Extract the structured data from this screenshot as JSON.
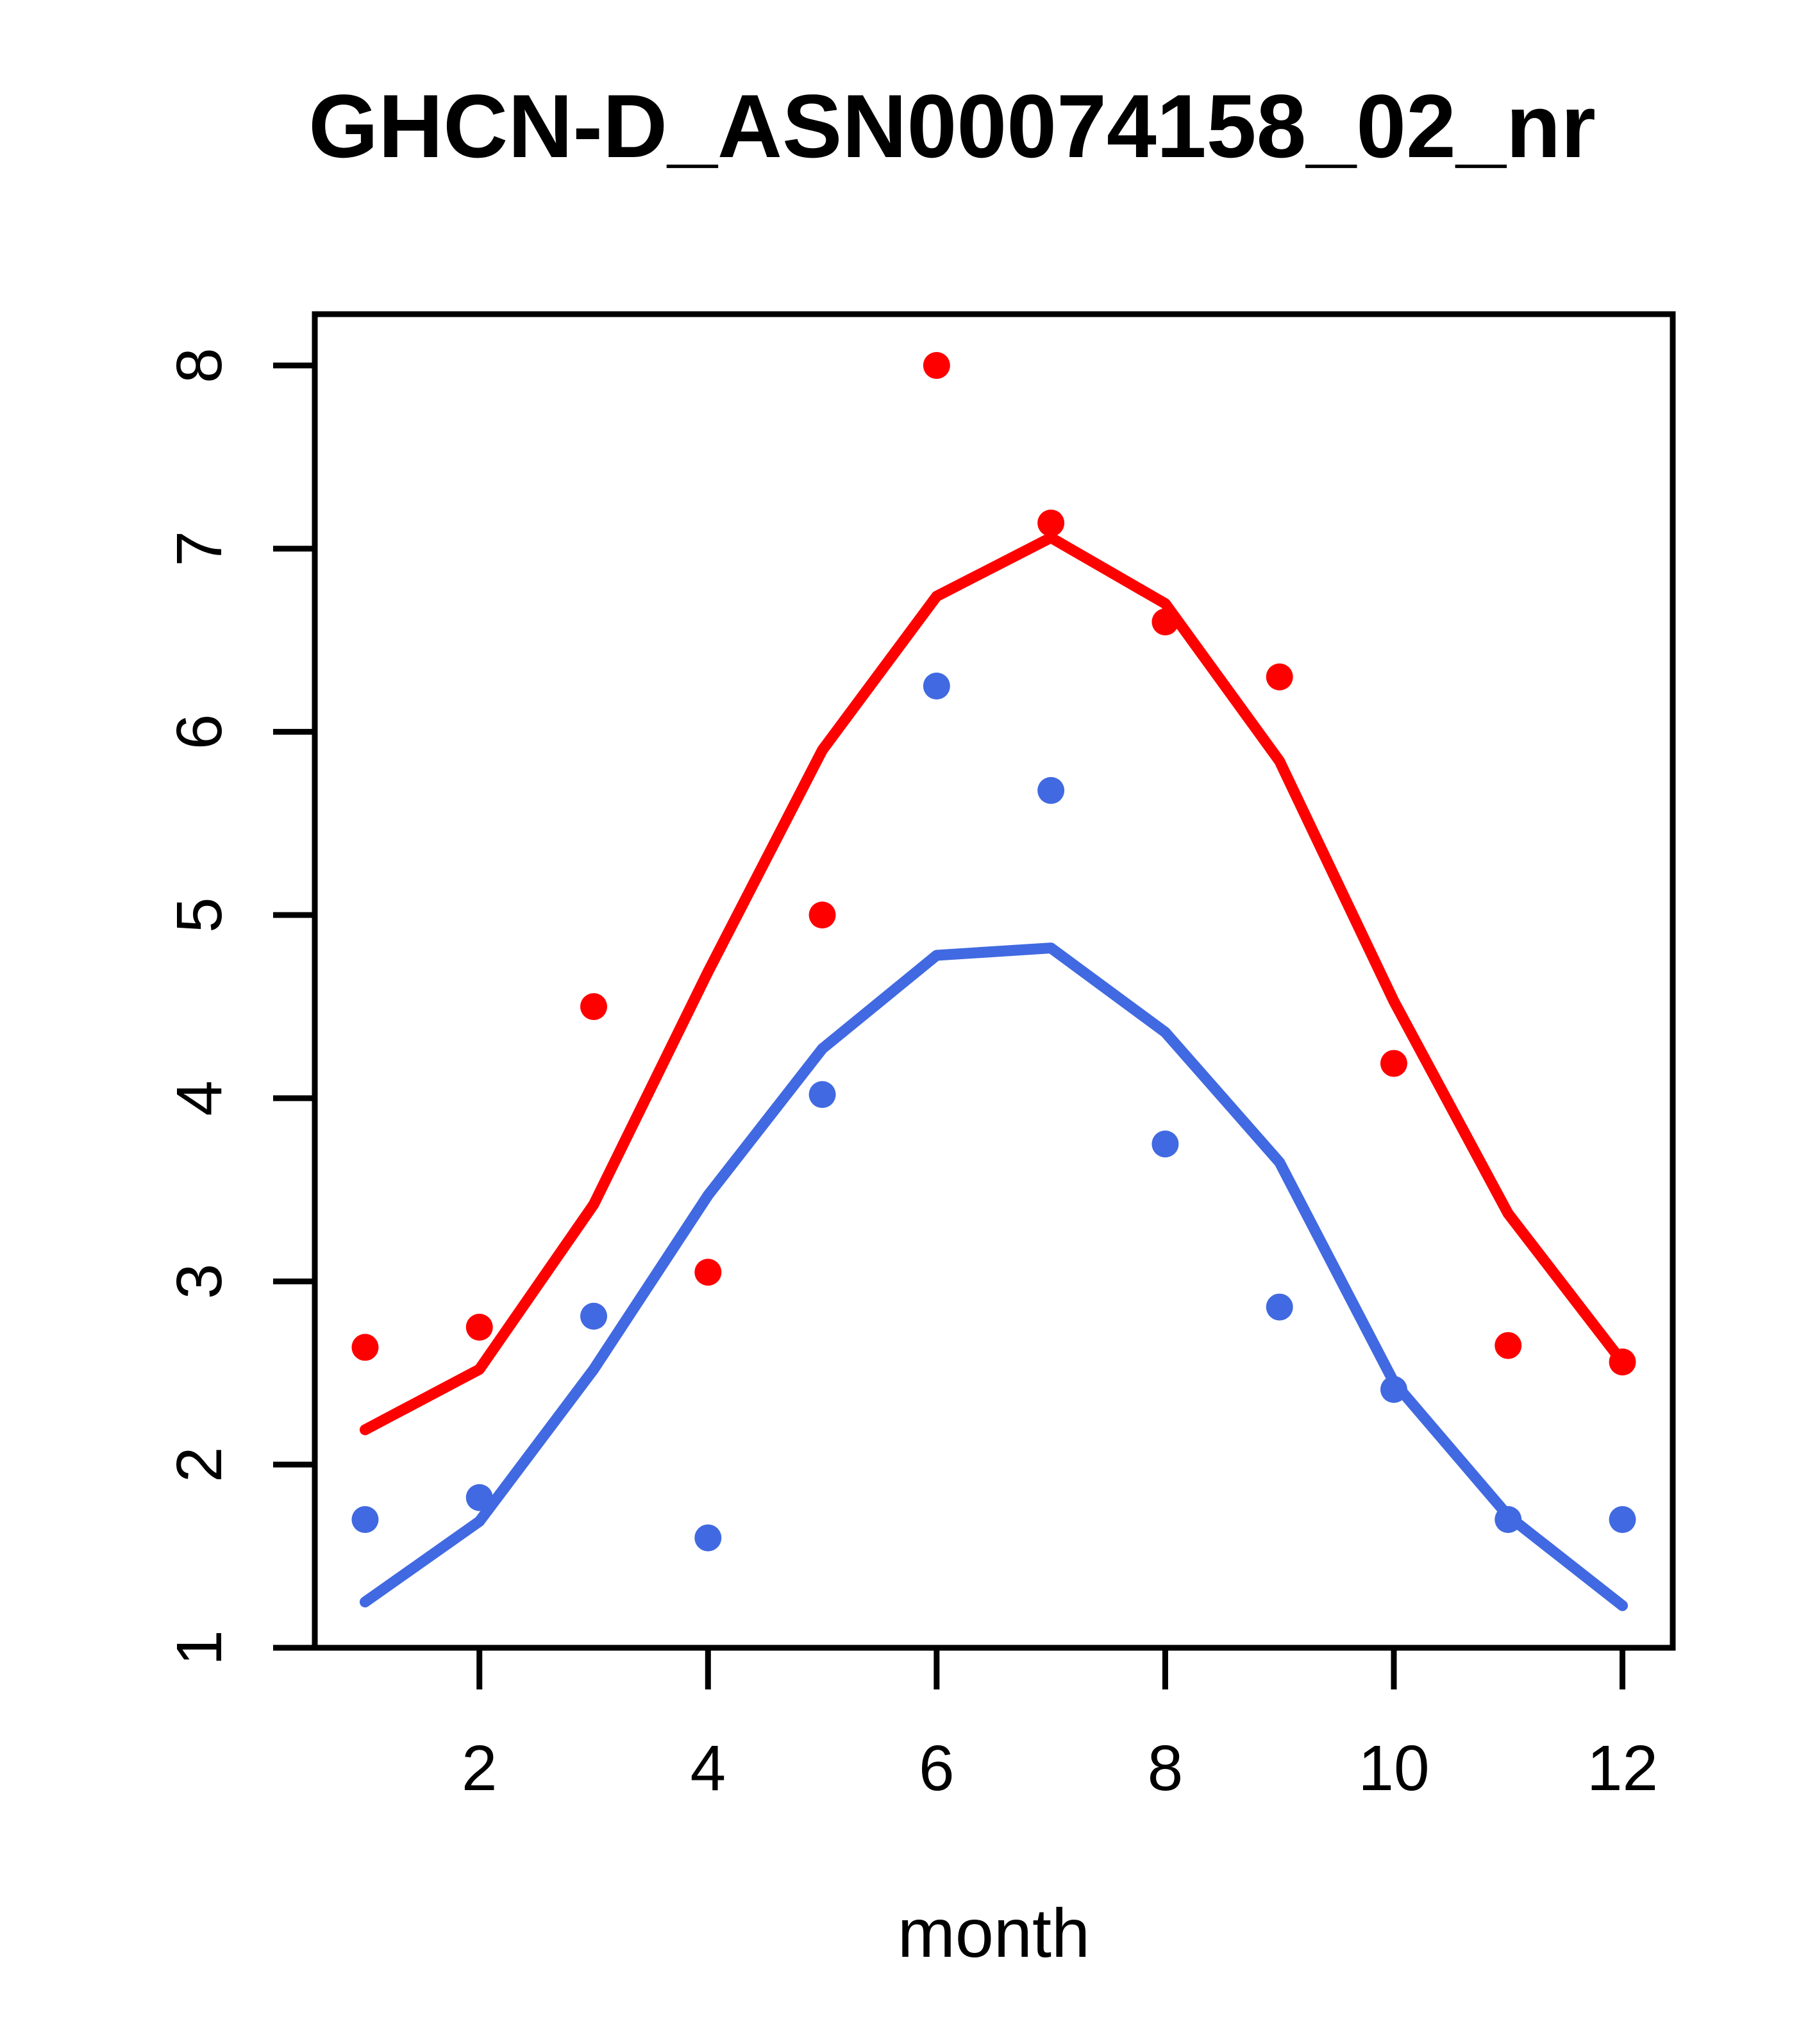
{
  "figure": {
    "title": "GHCN-D_ASN00074158_02_nr",
    "x_axis_label": "month"
  },
  "chart_data": {
    "type": "scatter",
    "subtype": "scatter-with-fitted-lines",
    "title": "GHCN-D_ASN00074158_02_nr",
    "xlabel": "month",
    "ylabel": "",
    "x": [
      1,
      2,
      3,
      4,
      5,
      6,
      7,
      8,
      9,
      10,
      11,
      12
    ],
    "x_tick_labels": [
      "2",
      "4",
      "6",
      "8",
      "10",
      "12"
    ],
    "x_ticks": [
      2,
      4,
      6,
      8,
      10,
      12
    ],
    "y_ticks": [
      1,
      2,
      3,
      4,
      5,
      6,
      7,
      8
    ],
    "y_tick_labels": [
      "1",
      "2",
      "3",
      "4",
      "5",
      "6",
      "7",
      "8"
    ],
    "xlim": [
      0.56,
      12.44
    ],
    "ylim": [
      1.0,
      8.28
    ],
    "grid": "off",
    "legend": "none",
    "colors": {
      "red": "#ff0000",
      "blue": "#4169e1",
      "axis": "#000000",
      "background": "#ffffff"
    },
    "series": [
      {
        "name": "red-points",
        "kind": "scatter",
        "color": "#ff0000",
        "values": [
          2.64,
          2.75,
          4.5,
          3.05,
          5.0,
          8.0,
          7.14,
          6.6,
          6.3,
          4.19,
          2.65,
          2.56
        ]
      },
      {
        "name": "blue-points",
        "kind": "scatter",
        "color": "#4169e1",
        "values": [
          1.7,
          1.82,
          2.81,
          1.6,
          4.02,
          6.25,
          5.68,
          3.75,
          2.86,
          2.41,
          1.7,
          1.7
        ]
      },
      {
        "name": "red-line",
        "kind": "line",
        "color": "#ff0000",
        "values": [
          2.19,
          2.52,
          3.42,
          4.69,
          5.9,
          6.74,
          7.06,
          6.7,
          5.84,
          4.53,
          3.37,
          2.56
        ]
      },
      {
        "name": "blue-line",
        "kind": "line",
        "color": "#4169e1",
        "values": [
          1.25,
          1.69,
          2.52,
          3.47,
          4.27,
          4.78,
          4.82,
          4.36,
          3.65,
          2.45,
          1.72,
          1.23
        ]
      }
    ]
  }
}
